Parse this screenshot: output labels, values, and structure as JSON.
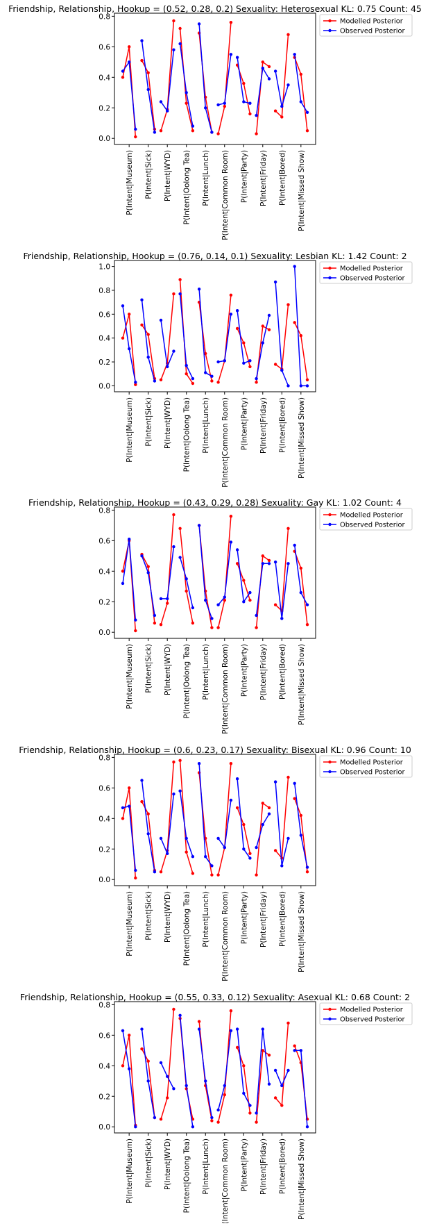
{
  "legend": {
    "modelled": "Modelled Posterior",
    "observed": "Observed Posterior",
    "placement": "outside-upper-right"
  },
  "colors": {
    "modelled": "#ff0000",
    "observed": "#0000ff"
  },
  "chart_data": [
    {
      "type": "line",
      "title": "Friendship, Relationship, Hookup = (0.52, 0.28, 0.2)      Sexuality: Heterosexual   KL: 0.75   Count: 45",
      "categories": [
        "P(Intent|Museum)",
        "P(Intent|Sick)",
        "P(Intent|WYD)",
        "P(Intent|Oolong Tea)",
        "P(Intent|Lunch)",
        "P(Intent|Common Room)",
        "P(Intent|Party)",
        "P(Intent|Friday)",
        "P(Intent|Bored)",
        "P(Intent|Missed Show)"
      ],
      "yticks": [
        "0.0",
        "0.2",
        "0.4",
        "0.6",
        "0.8"
      ],
      "ylim": [
        -0.04,
        0.82
      ],
      "series": [
        {
          "name": "Modelled Posterior",
          "values": [
            [
              0.4,
              0.6,
              0.01
            ],
            [
              0.51,
              0.43,
              0.06
            ],
            [
              0.05,
              0.19,
              0.77
            ],
            [
              0.72,
              0.23,
              0.05
            ],
            [
              0.69,
              0.27,
              0.04
            ],
            [
              0.03,
              0.21,
              0.76
            ],
            [
              0.48,
              0.36,
              0.16
            ],
            [
              0.03,
              0.5,
              0.47
            ],
            [
              0.18,
              0.14,
              0.68
            ],
            [
              0.53,
              0.42,
              0.05
            ]
          ]
        },
        {
          "name": "Observed Posterior",
          "values": [
            [
              0.44,
              0.5,
              0.06
            ],
            [
              0.64,
              0.32,
              0.04
            ],
            [
              0.24,
              0.18,
              0.58
            ],
            [
              0.62,
              0.3,
              0.08
            ],
            [
              0.75,
              0.2,
              0.04
            ],
            [
              0.22,
              0.23,
              0.55
            ],
            [
              0.53,
              0.24,
              0.23
            ],
            [
              0.15,
              0.46,
              0.39
            ],
            [
              0.44,
              0.21,
              0.35
            ],
            [
              0.55,
              0.24,
              0.17
            ]
          ]
        }
      ]
    },
    {
      "type": "line",
      "title": "Friendship, Relationship, Hookup = (0.76, 0.14, 0.1)      Sexuality: Lesbian   KL: 1.42   Count: 2",
      "categories": [
        "P(Intent|Museum)",
        "P(Intent|Sick)",
        "P(Intent|WYD)",
        "P(Intent|Oolong Tea)",
        "P(Intent|Lunch)",
        "P(Intent|Common Room)",
        "P(Intent|Party)",
        "P(Intent|Friday)",
        "P(Intent|Bored)",
        "P(Intent|Missed Show)"
      ],
      "yticks": [
        "0.0",
        "0.2",
        "0.4",
        "0.6",
        "0.8",
        "1.0"
      ],
      "ylim": [
        -0.05,
        1.05
      ],
      "series": [
        {
          "name": "Modelled Posterior",
          "values": [
            [
              0.4,
              0.6,
              0.01
            ],
            [
              0.51,
              0.43,
              0.06
            ],
            [
              0.05,
              0.19,
              0.77
            ],
            [
              0.89,
              0.1,
              0.02
            ],
            [
              0.7,
              0.27,
              0.04
            ],
            [
              0.03,
              0.21,
              0.76
            ],
            [
              0.48,
              0.36,
              0.16
            ],
            [
              0.03,
              0.5,
              0.47
            ],
            [
              0.18,
              0.14,
              0.68
            ],
            [
              0.53,
              0.42,
              0.05
            ]
          ]
        },
        {
          "name": "Observed Posterior",
          "values": [
            [
              0.67,
              0.31,
              0.03
            ],
            [
              0.72,
              0.24,
              0.04
            ],
            [
              0.55,
              0.16,
              0.29
            ],
            [
              0.77,
              0.17,
              0.06
            ],
            [
              0.81,
              0.11,
              0.08
            ],
            [
              0.2,
              0.21,
              0.6
            ],
            [
              0.63,
              0.19,
              0.21
            ],
            [
              0.06,
              0.36,
              0.59
            ],
            [
              0.87,
              0.13,
              0.0
            ],
            [
              1.0,
              0.0,
              0.0
            ]
          ]
        }
      ]
    },
    {
      "type": "line",
      "title": "Friendship, Relationship, Hookup = (0.43, 0.29, 0.28)      Sexuality: Gay   KL: 1.02   Count: 4",
      "categories": [
        "P(Intent|Museum)",
        "P(Intent|Sick)",
        "P(Intent|WYD)",
        "P(Intent|Oolong Tea)",
        "P(Intent|Lunch)",
        "P(Intent|Common Room)",
        "P(Intent|Party)",
        "P(Intent|Friday)",
        "P(Intent|Bored)",
        "P(Intent|Missed Show)"
      ],
      "yticks": [
        "0.0",
        "0.2",
        "0.4",
        "0.6",
        "0.8"
      ],
      "ylim": [
        -0.04,
        0.82
      ],
      "series": [
        {
          "name": "Modelled Posterior",
          "values": [
            [
              0.4,
              0.6,
              0.01
            ],
            [
              0.51,
              0.43,
              0.06
            ],
            [
              0.05,
              0.19,
              0.77
            ],
            [
              0.68,
              0.27,
              0.06
            ],
            [
              0.7,
              0.27,
              0.03
            ],
            [
              0.03,
              0.21,
              0.76
            ],
            [
              0.45,
              0.34,
              0.21
            ],
            [
              0.03,
              0.5,
              0.47
            ],
            [
              0.18,
              0.14,
              0.68
            ],
            [
              0.53,
              0.42,
              0.05
            ]
          ]
        },
        {
          "name": "Observed Posterior",
          "values": [
            [
              0.32,
              0.61,
              0.08
            ],
            [
              0.5,
              0.39,
              0.11
            ],
            [
              0.22,
              0.22,
              0.56
            ],
            [
              0.49,
              0.35,
              0.16
            ],
            [
              0.7,
              0.21,
              0.09
            ],
            [
              0.18,
              0.23,
              0.59
            ],
            [
              0.54,
              0.2,
              0.26
            ],
            [
              0.11,
              0.45,
              0.45
            ],
            [
              0.46,
              0.09,
              0.45
            ],
            [
              0.57,
              0.26,
              0.18
            ]
          ]
        }
      ]
    },
    {
      "type": "line",
      "title": "Friendship, Relationship, Hookup = (0.6, 0.23, 0.17)      Sexuality: Bisexual   KL: 0.96   Count: 10",
      "categories": [
        "P(Intent|Museum)",
        "P(Intent|Sick)",
        "P(Intent|WYD)",
        "P(Intent|Oolong Tea)",
        "P(Intent|Lunch)",
        "P(Intent|Common Room)",
        "P(Intent|Party)",
        "P(Intent|Friday)",
        "P(Intent|Bored)",
        "P(Intent|Missed Show)"
      ],
      "yticks": [
        "0.0",
        "0.2",
        "0.4",
        "0.6",
        "0.8"
      ],
      "ylim": [
        -0.04,
        0.82
      ],
      "series": [
        {
          "name": "Modelled Posterior",
          "values": [
            [
              0.4,
              0.6,
              0.01
            ],
            [
              0.51,
              0.43,
              0.06
            ],
            [
              0.05,
              0.19,
              0.77
            ],
            [
              0.78,
              0.18,
              0.04
            ],
            [
              0.7,
              0.27,
              0.03
            ],
            [
              0.03,
              0.21,
              0.76
            ],
            [
              0.47,
              0.36,
              0.17
            ],
            [
              0.03,
              0.5,
              0.47
            ],
            [
              0.19,
              0.14,
              0.67
            ],
            [
              0.53,
              0.42,
              0.05
            ]
          ]
        },
        {
          "name": "Observed Posterior",
          "values": [
            [
              0.47,
              0.48,
              0.06
            ],
            [
              0.65,
              0.3,
              0.05
            ],
            [
              0.27,
              0.17,
              0.56
            ],
            [
              0.58,
              0.27,
              0.15
            ],
            [
              0.76,
              0.15,
              0.09
            ],
            [
              0.27,
              0.21,
              0.52
            ],
            [
              0.66,
              0.2,
              0.14
            ],
            [
              0.21,
              0.36,
              0.43
            ],
            [
              0.64,
              0.09,
              0.27
            ],
            [
              0.63,
              0.29,
              0.08
            ]
          ]
        }
      ]
    },
    {
      "type": "line",
      "title": "Friendship, Relationship, Hookup = (0.55, 0.33, 0.12)      Sexuality: Asexual   KL: 0.68   Count: 2",
      "categories": [
        "P(Intent|Museum)",
        "P(Intent|Sick)",
        "P(Intent|WYD)",
        "P(Intent|Oolong Tea)",
        "P(Intent|Lunch)",
        "P(Intent|Common Room)",
        "P(Intent|Party)",
        "P(Intent|Friday)",
        "P(Intent|Bored)",
        "P(Intent|Missed Show)"
      ],
      "yticks": [
        "0.0",
        "0.2",
        "0.4",
        "0.6",
        "0.8"
      ],
      "ylim": [
        -0.04,
        0.82
      ],
      "series": [
        {
          "name": "Modelled Posterior",
          "values": [
            [
              0.4,
              0.6,
              0.01
            ],
            [
              0.51,
              0.43,
              0.06
            ],
            [
              0.05,
              0.19,
              0.77
            ],
            [
              0.71,
              0.25,
              0.05
            ],
            [
              0.69,
              0.27,
              0.04
            ],
            [
              0.03,
              0.21,
              0.76
            ],
            [
              0.52,
              0.4,
              0.09
            ],
            [
              0.03,
              0.5,
              0.47
            ],
            [
              0.19,
              0.14,
              0.68
            ],
            [
              0.53,
              0.42,
              0.05
            ]
          ]
        },
        {
          "name": "Observed Posterior",
          "values": [
            [
              0.63,
              0.38,
              0.0
            ],
            [
              0.64,
              0.3,
              0.06
            ],
            [
              0.42,
              0.33,
              0.25
            ],
            [
              0.73,
              0.27,
              0.0
            ],
            [
              0.64,
              0.3,
              0.06
            ],
            [
              0.11,
              0.27,
              0.63
            ],
            [
              0.64,
              0.22,
              0.14
            ],
            [
              0.09,
              0.64,
              0.28
            ],
            [
              0.37,
              0.27,
              0.37
            ],
            [
              0.5,
              0.5,
              0.0
            ]
          ]
        }
      ]
    }
  ]
}
